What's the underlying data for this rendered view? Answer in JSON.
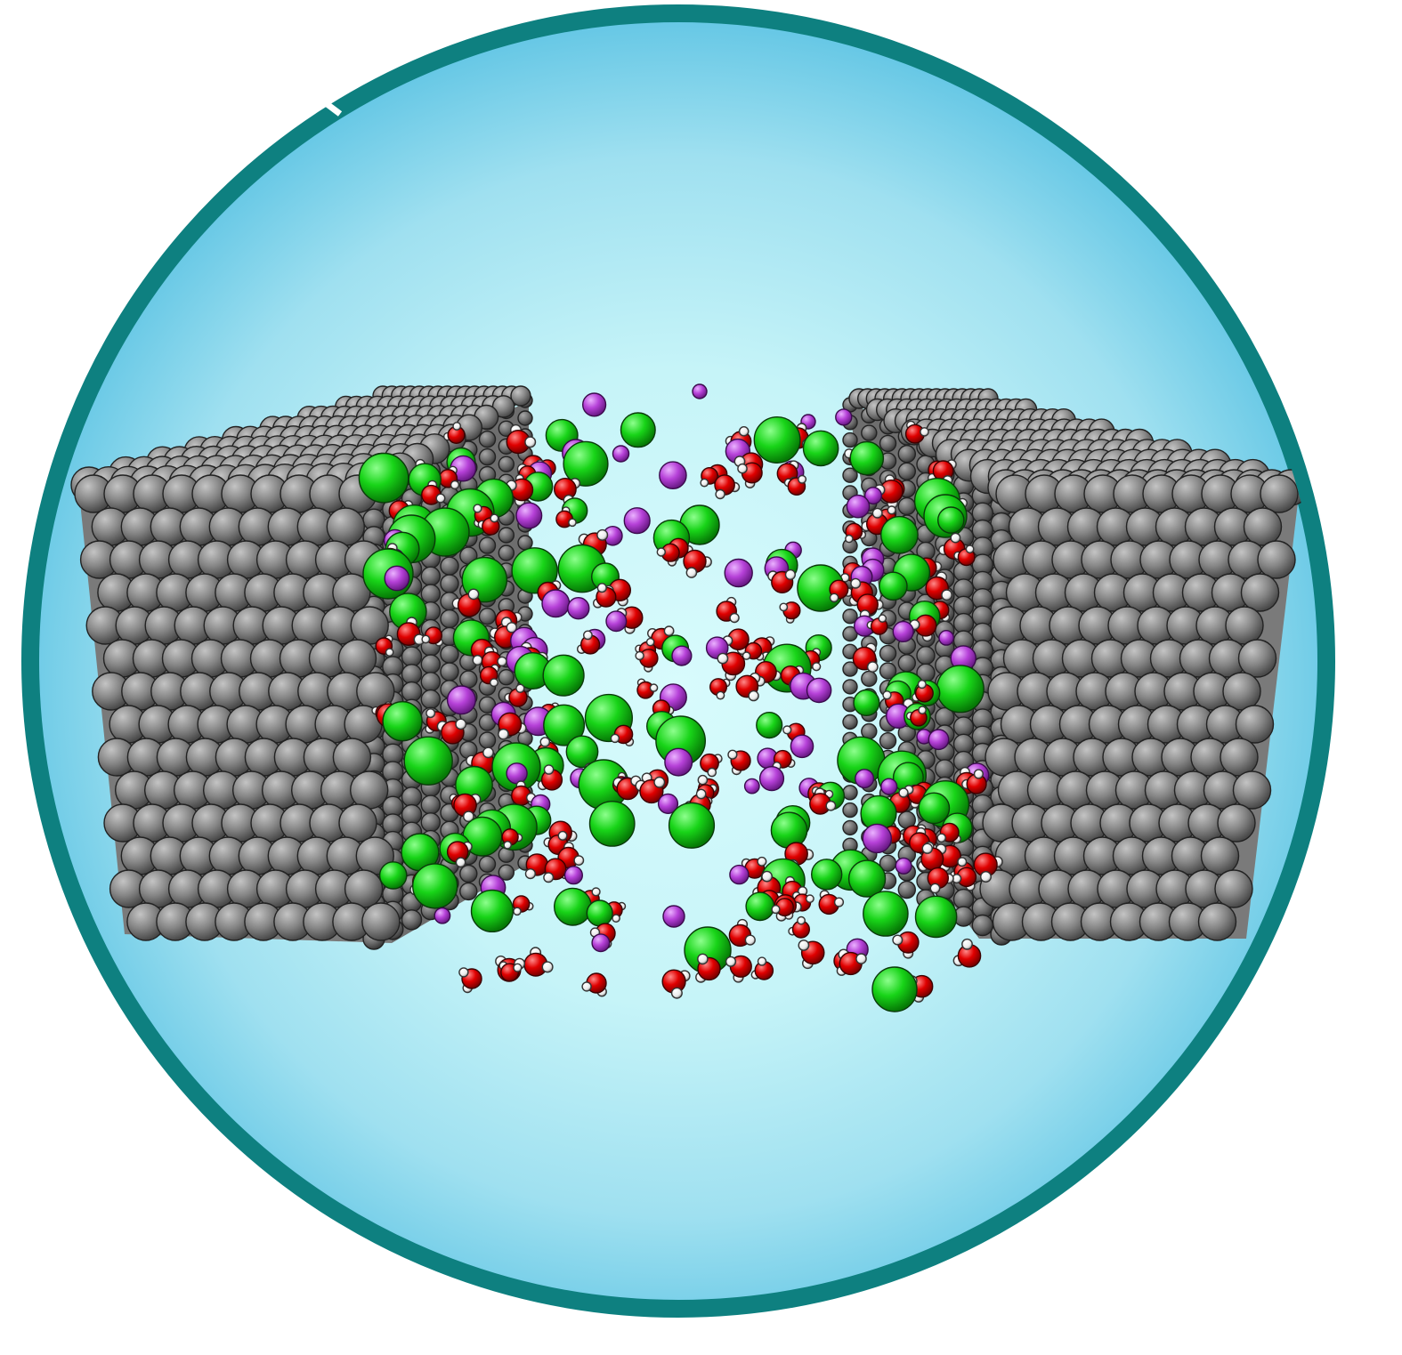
{
  "colors": {
    "background": "#ffffff",
    "ring": "#0e8080",
    "sky_center": "#d8fbfc",
    "sky_mid": "#b7ecf4",
    "sky_edge": "#5cc4e4",
    "electrode_light": "#b6b6b6",
    "electrode_mid": "#858585",
    "electrode_dark": "#4e4e4e",
    "oxygen": "#e00000",
    "hydrogen": "#ffffff",
    "chloride": "#14d214",
    "cation": "#b641d8"
  },
  "legend": {
    "electrodes": "metal-electrode",
    "water": "water-molecule",
    "anion": "chloride-ion",
    "cation": "cation-ion"
  }
}
